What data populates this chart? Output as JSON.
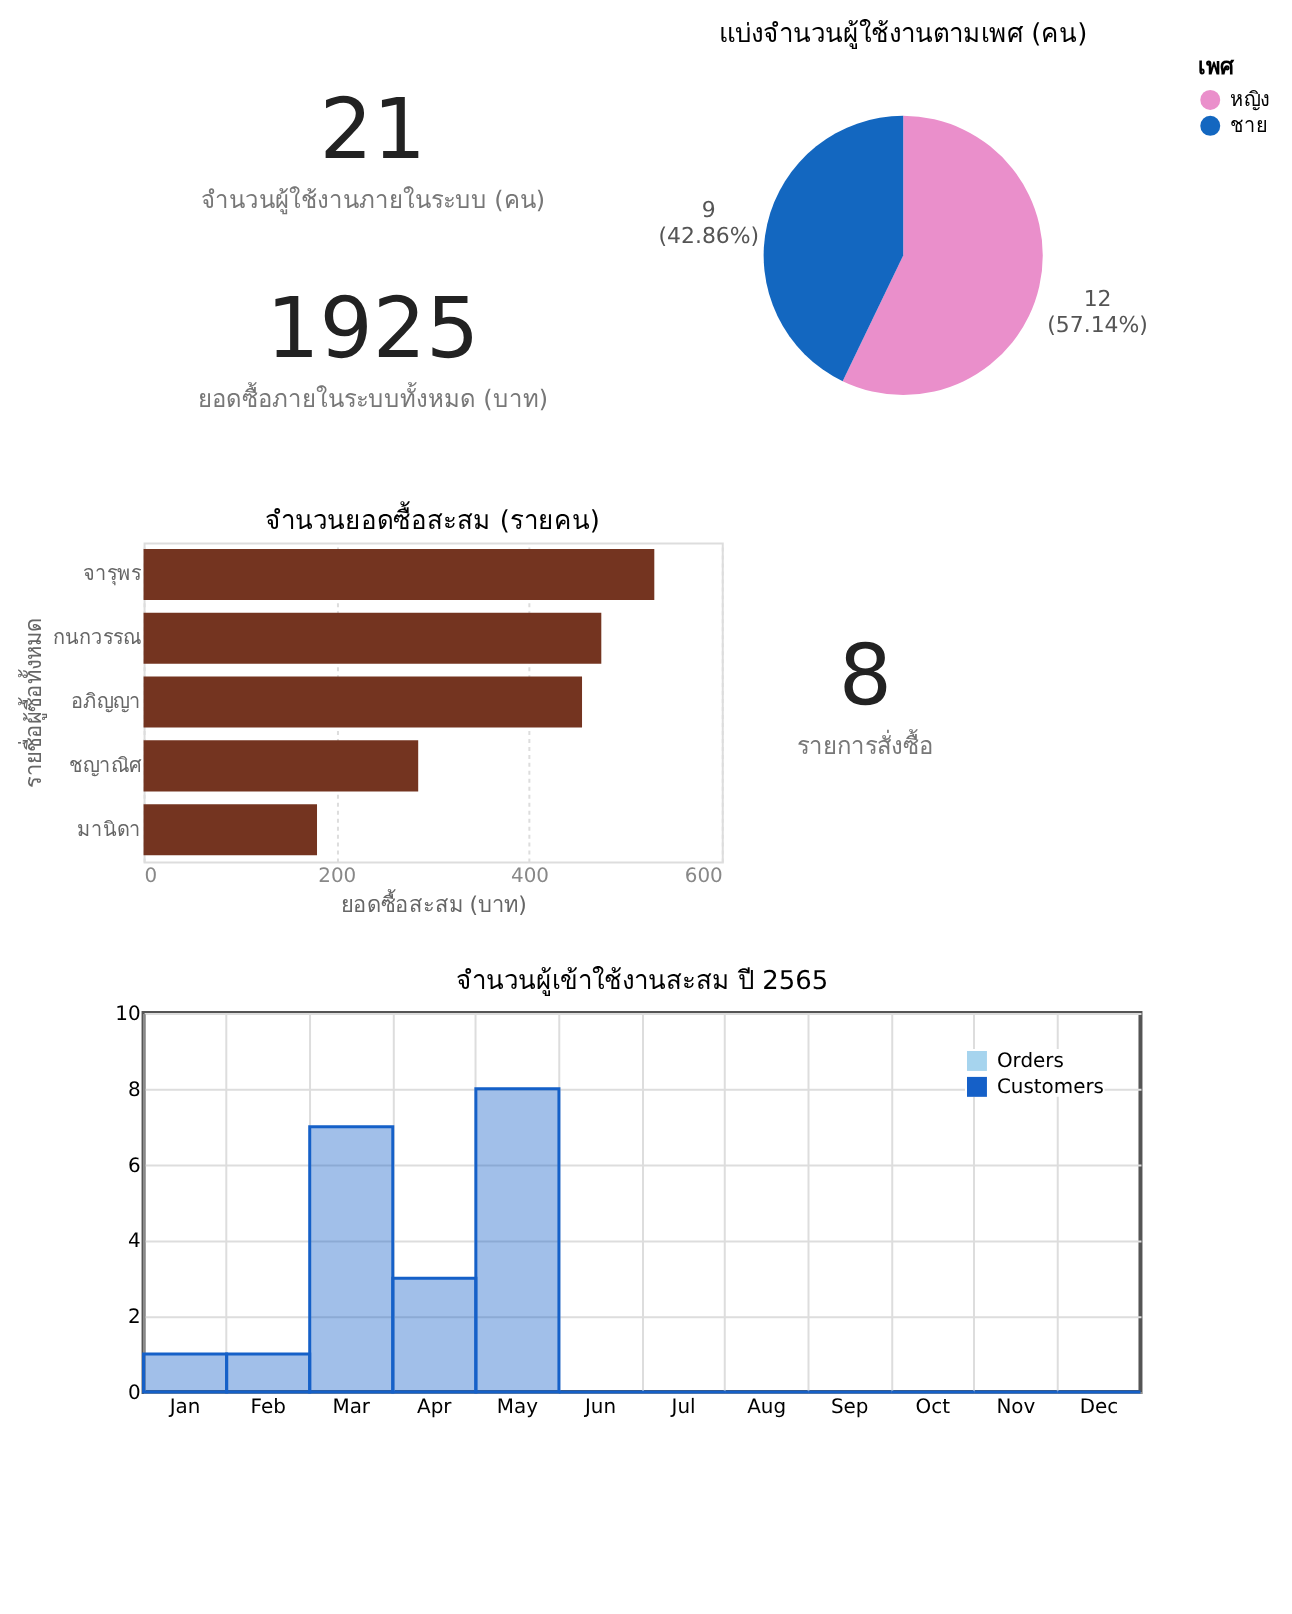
{
  "chart_data": [
    {
      "type": "other",
      "annotations": [
        "21",
        "จำนวนผู้ใช้งานภายในระบบ (คน)",
        "1925",
        "ยอดซื้อภายในระบบทั้งหมด (บาท)"
      ]
    },
    {
      "type": "pie",
      "title": "แบ่งจำนวนผู้ใช้งานตามเพศ (คน)",
      "legend_title": "เพศ",
      "legend": "right",
      "categories": [
        "หญิง",
        "ชาย"
      ],
      "values": [
        12,
        9
      ],
      "colors": [
        "#ea8fcb",
        "#1367c0"
      ],
      "value_labels": [
        "12\n(57.14%)",
        "9\n(42.86%)"
      ]
    },
    {
      "type": "bar",
      "orientation": "horizontal",
      "title": "จำนวนยอดซื้อสะสม (รายคน)",
      "xlabel": "ยอดซื้อสะสม (บาท)",
      "ylabel": "รายชื่อผู้ซื้อทั้งหมด",
      "categories": [
        "จารุพร",
        "กนกวรรณ",
        "อภิญญา",
        "ชญาณิศ",
        "มานิดา"
      ],
      "values": [
        530,
        475,
        455,
        285,
        180
      ],
      "color": "#743420",
      "xlim": [
        0,
        600
      ],
      "xticks": [
        0,
        200,
        400,
        600
      ],
      "grid": "x"
    },
    {
      "type": "other",
      "annotations": [
        "8",
        "รายการสั่งซื้อ"
      ]
    },
    {
      "type": "bar",
      "title": "จำนวนผู้เข้าใช้งานสะสม ปี 2565",
      "categories": [
        "Jan",
        "Feb",
        "Mar",
        "Apr",
        "May",
        "Jun",
        "Jul",
        "Aug",
        "Sep",
        "Oct",
        "Nov",
        "Dec"
      ],
      "ylim": [
        0,
        10
      ],
      "yticks": [
        0,
        2,
        4,
        6,
        8,
        10
      ],
      "grid": true,
      "legend": "top right",
      "series": [
        {
          "name": "Orders",
          "color": "#a6d4ee",
          "values": [
            null,
            null,
            null,
            null,
            null,
            null,
            null,
            null,
            null,
            null,
            null,
            null
          ]
        },
        {
          "name": "Customers",
          "color": "#1560c8",
          "values": [
            1,
            1,
            7,
            3,
            8,
            0,
            0,
            0,
            0,
            0,
            0,
            0
          ]
        }
      ]
    }
  ]
}
